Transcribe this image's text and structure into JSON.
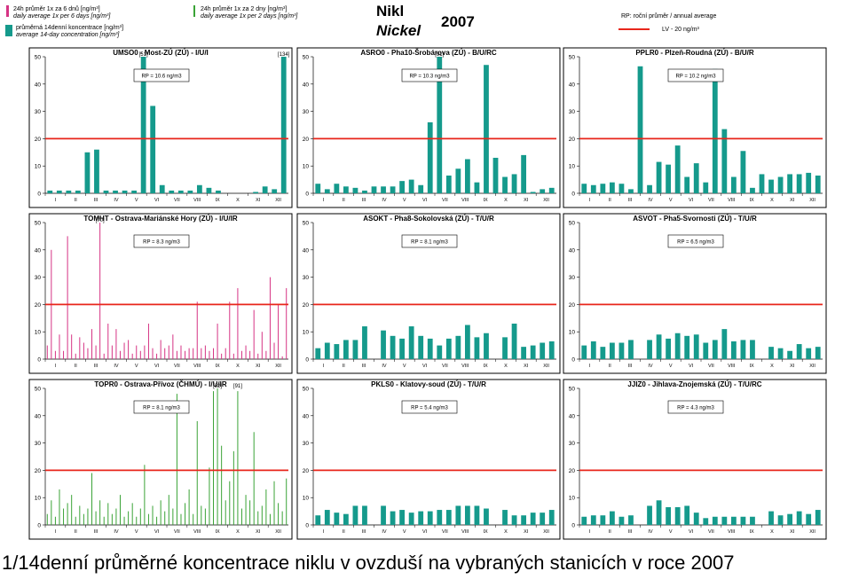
{
  "header": {
    "legend_pink": {
      "title": "24h průměr 1x za 6 dnů [ng/m³]",
      "subtitle": "daily average 1x per 6 days [ng/m³]",
      "color": "#d63384"
    },
    "legend_green": {
      "title": "24h průměr 1x za 2 dny [ng/m³]",
      "subtitle": "daily average 1x per 2 days [ng/m³]",
      "color": "#3aa336"
    },
    "legend_teal": {
      "title": "průměrná 14denní koncentrace [ng/m³]",
      "subtitle": "average 14-day concentration [ng/m³]",
      "color": "#159a8c"
    },
    "title_cz": "Nikl",
    "title_en": "Nickel",
    "year": "2007",
    "legend_rp": "RP: roční průměr / annual average",
    "legend_lv": "LV   - 20 ng/m³",
    "lv_color": "#e8261b"
  },
  "caption": "1/14denní průměrné koncentrace niklu v ovzduší na vybraných stanicích v roce 2007",
  "months": [
    "I",
    "II",
    "III",
    "IV",
    "V",
    "VI",
    "VII",
    "VIII",
    "IX",
    "X",
    "XI",
    "XII"
  ],
  "chart_data": [
    {
      "type": "bar",
      "title": "UMSO0 - Most-ZÚ (ZÚ) - I/U/I",
      "rp": "RP = 10.6 ng/m3",
      "ylim": [
        0,
        50
      ],
      "yticks": [
        0,
        10,
        20,
        30,
        40,
        50
      ],
      "limit": 20,
      "values": [
        1,
        1,
        1,
        1,
        15,
        16,
        1,
        1,
        1,
        1,
        50,
        32,
        3,
        1,
        1,
        1,
        3,
        2,
        1,
        0,
        0,
        0,
        0.5,
        2.5,
        1.5,
        50
      ],
      "annotations": [
        {
          "index": 10,
          "text": "[51]"
        },
        {
          "index": 25,
          "text": "[134]"
        }
      ]
    },
    {
      "type": "bar",
      "title": "ASRO0 - Pha10-Šrobárova (ZÚ) - B/U/RC",
      "rp": "RP = 10.3 ng/m3",
      "ylim": [
        0,
        50
      ],
      "yticks": [
        0,
        10,
        20,
        30,
        40,
        50
      ],
      "limit": 20,
      "values": [
        3.5,
        1.5,
        3.5,
        2.5,
        2,
        1,
        2.5,
        2.5,
        2.5,
        4.5,
        5,
        3,
        26,
        50,
        6.5,
        9,
        12.5,
        4,
        47,
        13,
        6,
        7,
        14,
        0.5,
        1.5,
        2
      ],
      "annotations": [
        {
          "index": 13,
          "text": "[91]"
        }
      ]
    },
    {
      "type": "bar",
      "title": "PPLR0 - Plzeň-Roudná (ZÚ) - B/U/R",
      "rp": "RP = 10.2 ng/m3",
      "ylim": [
        0,
        50
      ],
      "yticks": [
        0,
        10,
        20,
        30,
        40,
        50
      ],
      "limit": 20,
      "values": [
        3.5,
        3,
        3.5,
        4,
        3.5,
        1.5,
        46.5,
        3,
        11.5,
        10.5,
        17.5,
        6,
        11,
        4,
        45.5,
        23.5,
        6,
        15.5,
        2,
        7,
        5,
        6,
        7,
        7,
        7.5,
        6.5
      ],
      "annotations": []
    },
    {
      "type": "needle",
      "title": "TOMHT - Ostrava-Mariánské Hory (ZÚ) - I/U/IR",
      "rp": "RP = 8.3 ng/m3",
      "ylim": [
        0,
        50
      ],
      "yticks": [
        0,
        10,
        20,
        30,
        40,
        50
      ],
      "limit": 20,
      "values": [
        5,
        40,
        3,
        9,
        3,
        45,
        9,
        2,
        8,
        6,
        4,
        11,
        5,
        50,
        2,
        13,
        5,
        11,
        3,
        6,
        7,
        2,
        5,
        3,
        5,
        13,
        4,
        2,
        7,
        4,
        5,
        9,
        3,
        5,
        3,
        4,
        4,
        21,
        4,
        5,
        3,
        4,
        13,
        2,
        4,
        21,
        2,
        26,
        3,
        5,
        3,
        18,
        2,
        10,
        3,
        30,
        6,
        20,
        1,
        26
      ],
      "annotations": [
        {
          "index": 13,
          "text": "[70]"
        }
      ]
    },
    {
      "type": "bar",
      "title": "ASOKT - Pha8-Sokolovská (ZÚ) - T/U/R",
      "rp": "RP = 8.1 ng/m3",
      "ylim": [
        0,
        50
      ],
      "yticks": [
        0,
        10,
        20,
        30,
        40,
        50
      ],
      "limit": 20,
      "values": [
        4,
        6,
        5.5,
        7,
        7,
        12,
        0,
        10.5,
        8.5,
        7.5,
        12,
        8.5,
        7.5,
        5,
        7.5,
        8.5,
        12.5,
        8,
        9.5,
        0,
        8,
        13,
        4.5,
        5,
        6,
        6.5
      ],
      "annotations": []
    },
    {
      "type": "bar",
      "title": "ASVOT - Pha5-Svornosti (ZÚ) - T/U/R",
      "rp": "RP = 6.5 ng/m3",
      "ylim": [
        0,
        50
      ],
      "yticks": [
        0,
        10,
        20,
        30,
        40,
        50
      ],
      "limit": 20,
      "values": [
        5,
        6.5,
        4.5,
        6,
        6,
        7,
        0,
        7,
        9,
        7.5,
        9.5,
        8.5,
        9,
        6,
        7,
        11,
        6.5,
        7,
        7,
        0,
        4.5,
        4,
        3,
        5.5,
        4,
        4.5
      ],
      "annotations": []
    },
    {
      "type": "needle",
      "title": "TOPR0 - Ostrava-Přívoz (ČHMÚ) - I/U/IR",
      "rp": "RP = 8.1 ng/m3",
      "ylim": [
        0,
        50
      ],
      "yticks": [
        0,
        10,
        20,
        30,
        40,
        50
      ],
      "limit": 20,
      "values": [
        4,
        9,
        3,
        13,
        6,
        8,
        11,
        3,
        7,
        4,
        6,
        19,
        5,
        9,
        3,
        8,
        4,
        6,
        11,
        3,
        5,
        8,
        3,
        6,
        22,
        4,
        7,
        3,
        9,
        5,
        11,
        6,
        48,
        4,
        8,
        13,
        4,
        38,
        7,
        6,
        21,
        49,
        50,
        29,
        9,
        16,
        27,
        49,
        6,
        11,
        9,
        34,
        5,
        7,
        13,
        4,
        16,
        8,
        5,
        17
      ],
      "annotations": [
        {
          "index": 42,
          "text": "[82]"
        },
        {
          "index": 47,
          "text": "[91]"
        }
      ]
    },
    {
      "type": "bar",
      "title": "PKLS0 - Klatovy-soud (ZÚ) - T/U/R",
      "rp": "RP = 5.4 ng/m3",
      "ylim": [
        0,
        50
      ],
      "yticks": [
        0,
        10,
        20,
        30,
        40,
        50
      ],
      "limit": 20,
      "values": [
        3.5,
        5.5,
        4.5,
        4,
        7,
        7,
        0,
        7,
        5,
        5.5,
        4.5,
        5,
        5,
        5.5,
        5.5,
        7,
        7,
        7,
        6,
        0,
        5.5,
        3.5,
        3.5,
        4.5,
        4.5,
        5.5
      ],
      "annotations": []
    },
    {
      "type": "bar",
      "title": "JJIZ0 - Jihlava-Znojemská (ZÚ) - T/U/RC",
      "rp": "RP = 4.3 ng/m3",
      "ylim": [
        0,
        50
      ],
      "yticks": [
        0,
        10,
        20,
        30,
        40,
        50
      ],
      "limit": 20,
      "values": [
        3,
        3.5,
        3.5,
        5,
        3,
        3.5,
        0,
        7,
        9,
        6.5,
        6.5,
        7,
        4.5,
        2.5,
        3,
        3,
        3,
        3,
        3,
        0,
        5,
        3.5,
        4,
        5,
        4,
        5.5
      ],
      "annotations": []
    }
  ]
}
